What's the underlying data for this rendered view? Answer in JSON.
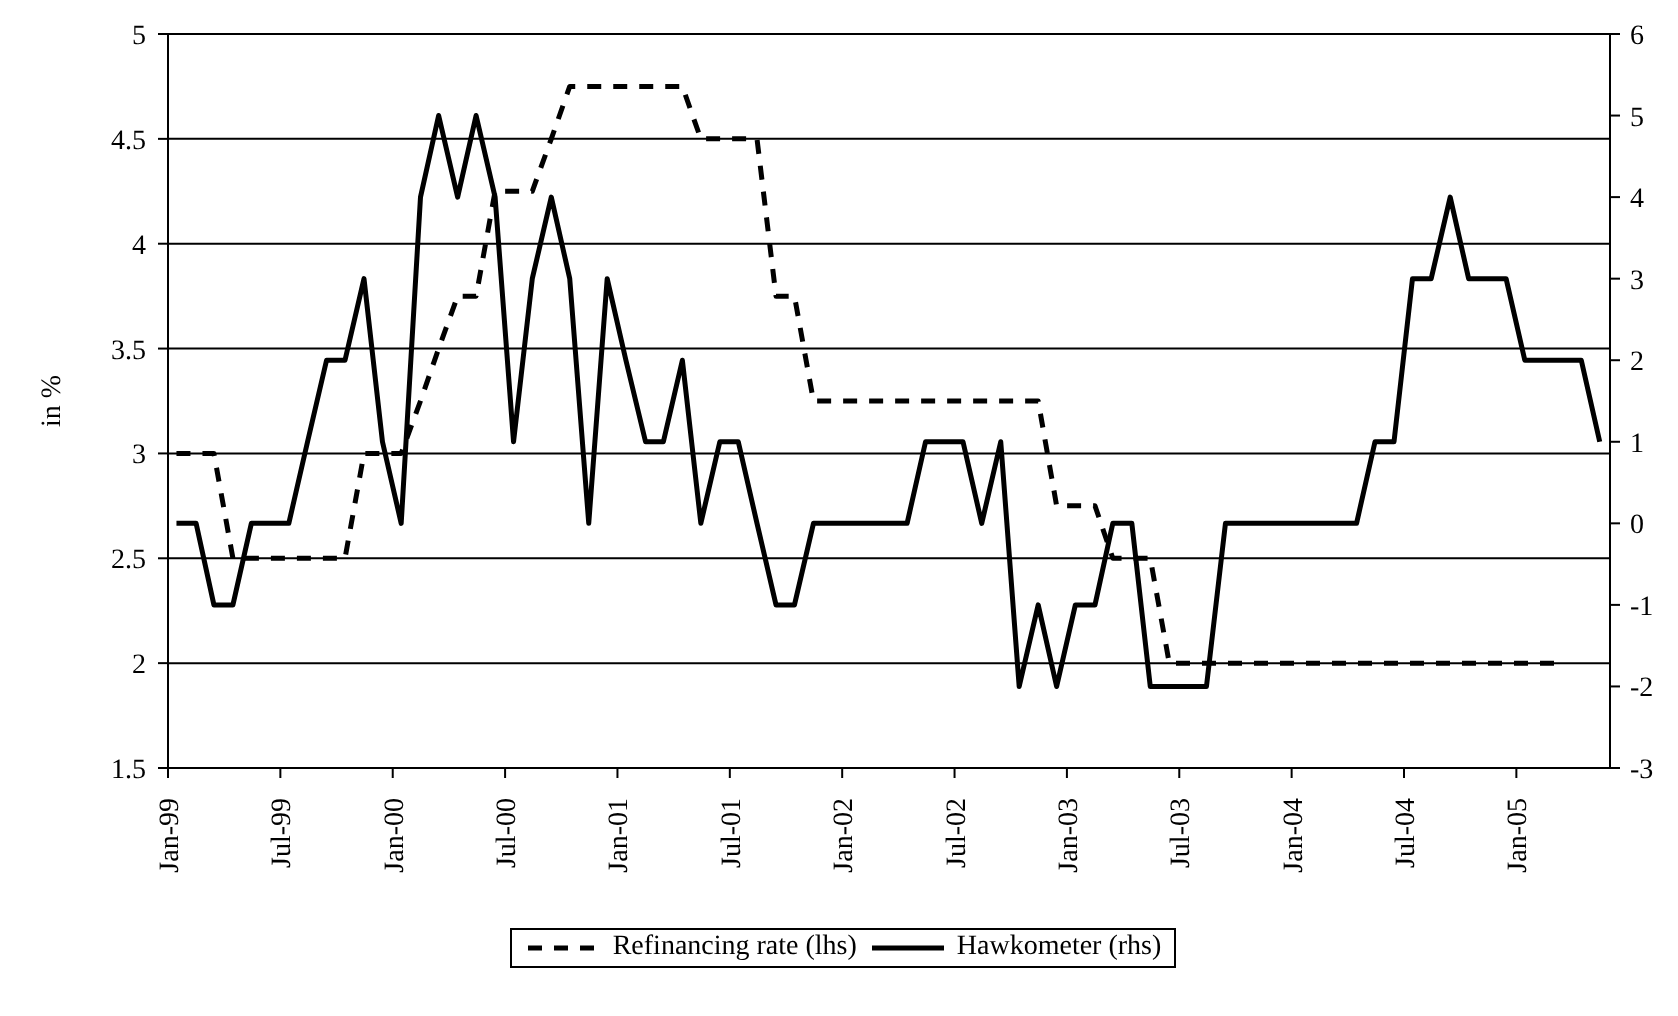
{
  "chart_data": {
    "type": "line",
    "ylabel": "in %",
    "x": [
      "1999-01-15",
      "1999-02-15",
      "1999-03-15",
      "1999-04-15",
      "1999-05-15",
      "1999-06-15",
      "1999-07-15",
      "1999-08-15",
      "1999-09-15",
      "1999-10-15",
      "1999-11-15",
      "1999-12-15",
      "2000-01-15",
      "2000-02-15",
      "2000-03-15",
      "2000-04-15",
      "2000-05-15",
      "2000-06-15",
      "2000-07-15",
      "2000-08-15",
      "2000-09-15",
      "2000-10-15",
      "2000-11-15",
      "2000-12-15",
      "2001-01-15",
      "2001-02-15",
      "2001-03-15",
      "2001-04-15",
      "2001-05-15",
      "2001-06-15",
      "2001-07-15",
      "2001-08-15",
      "2001-09-15",
      "2001-10-15",
      "2001-11-15",
      "2001-12-15",
      "2002-01-15",
      "2002-02-15",
      "2002-03-15",
      "2002-04-15",
      "2002-05-15",
      "2002-06-15",
      "2002-07-15",
      "2002-08-15",
      "2002-09-15",
      "2002-10-15",
      "2002-11-15",
      "2002-12-15",
      "2003-01-15",
      "2003-02-15",
      "2003-03-15",
      "2003-04-15",
      "2003-05-15",
      "2003-06-15",
      "2003-07-15",
      "2003-08-15",
      "2003-09-15",
      "2003-10-15",
      "2003-11-15",
      "2003-12-15",
      "2004-01-15",
      "2004-02-15",
      "2004-03-15",
      "2004-04-15",
      "2004-05-15",
      "2004-06-15",
      "2004-07-15",
      "2004-08-15",
      "2004-09-15",
      "2004-10-15",
      "2004-11-15",
      "2004-12-15",
      "2005-01-15",
      "2005-02-15",
      "2005-03-15",
      "2005-04-15",
      "2005-05-15"
    ],
    "series": [
      {
        "name": "Refinancing rate (lhs)",
        "color": "#000000",
        "line_style": "dashed",
        "values": [
          3,
          3,
          3,
          2.5,
          2.5,
          2.5,
          2.5,
          2.5,
          2.5,
          2.5,
          3,
          3,
          3,
          3.25,
          3.5,
          3.75,
          3.75,
          4.25,
          4.25,
          4.25,
          4.5,
          4.75,
          4.75,
          4.75,
          4.75,
          4.75,
          4.75,
          4.75,
          4.5,
          4.5,
          4.5,
          4.5,
          3.75,
          3.75,
          3.25,
          3.25,
          3.25,
          3.25,
          3.25,
          3.25,
          3.25,
          3.25,
          3.25,
          3.25,
          3.25,
          3.25,
          3.25,
          2.75,
          2.75,
          2.75,
          2.5,
          2.5,
          2.5,
          2,
          2,
          2,
          2,
          2,
          2,
          2,
          2,
          2,
          2,
          2,
          2,
          2,
          2,
          2,
          2,
          2,
          2,
          2,
          2,
          2,
          2,
          null,
          null
        ]
      },
      {
        "name": "Hawkometer (rhs)",
        "color": "#000000",
        "line_style": "solid",
        "axis": "y2",
        "values": [
          0,
          0,
          -1,
          -1,
          0,
          0,
          0,
          1,
          2,
          2,
          3,
          1,
          0,
          4,
          5,
          4,
          5,
          4,
          1,
          3,
          4,
          3,
          0,
          3,
          2,
          1,
          1,
          2,
          0,
          1,
          1,
          0,
          -1,
          -1,
          0,
          0,
          0,
          0,
          0,
          0,
          1,
          1,
          1,
          0,
          1,
          -2,
          -1,
          -2,
          -1,
          -1,
          0,
          0,
          -2,
          -2,
          -2,
          -2,
          0,
          0,
          0,
          0,
          0,
          0,
          0,
          0,
          1,
          1,
          3,
          3,
          4,
          3,
          3,
          3,
          2,
          2,
          2,
          2,
          1
        ]
      }
    ],
    "xlim": [
      "1999-01",
      "2005-06"
    ],
    "xticks": [
      {
        "value": "1999-01",
        "label": "Jan-99"
      },
      {
        "value": "1999-07",
        "label": "Jul-99"
      },
      {
        "value": "2000-01",
        "label": "Jan-00"
      },
      {
        "value": "2000-07",
        "label": "Jul-00"
      },
      {
        "value": "2001-01",
        "label": "Jan-01"
      },
      {
        "value": "2001-07",
        "label": "Jul-01"
      },
      {
        "value": "2002-01",
        "label": "Jan-02"
      },
      {
        "value": "2002-07",
        "label": "Jul-02"
      },
      {
        "value": "2003-01",
        "label": "Jan-03"
      },
      {
        "value": "2003-07",
        "label": "Jul-03"
      },
      {
        "value": "2004-01",
        "label": "Jan-04"
      },
      {
        "value": "2004-07",
        "label": "Jul-04"
      },
      {
        "value": "2005-01",
        "label": "Jan-05"
      }
    ],
    "ylim": [
      1.5,
      5
    ],
    "yticks": [
      1.5,
      2,
      2.5,
      3,
      3.5,
      4,
      4.5,
      5
    ],
    "y2lim": [
      -3,
      6
    ],
    "y2ticks": [
      -3,
      -2,
      -1,
      0,
      1,
      2,
      3,
      4,
      5,
      6
    ],
    "grid": "y",
    "legend": "bottom",
    "marker": "none"
  }
}
